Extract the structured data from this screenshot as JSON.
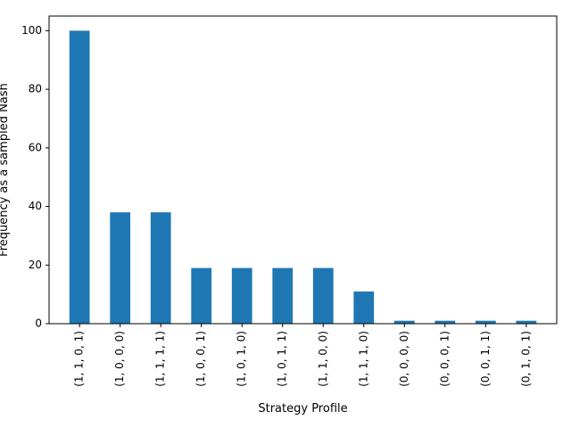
{
  "chart_data": {
    "type": "bar",
    "title": "",
    "xlabel": "Strategy Profile",
    "ylabel": "Frequency as a sampled Nash",
    "categories": [
      "(1, 1, 0, 1)",
      "(1, 0, 0, 0)",
      "(1, 1, 1, 1)",
      "(1, 0, 0, 1)",
      "(1, 0, 1, 0)",
      "(1, 0, 1, 1)",
      "(1, 1, 0, 0)",
      "(1, 1, 1, 0)",
      "(0, 0, 0, 0)",
      "(0, 0, 0, 1)",
      "(0, 0, 1, 1)",
      "(0, 1, 0, 1)"
    ],
    "values": [
      100,
      38,
      38,
      19,
      19,
      19,
      19,
      11,
      1,
      1,
      1,
      1
    ],
    "ylim": [
      0,
      105
    ],
    "yticks": [
      0,
      20,
      40,
      60,
      80,
      100
    ],
    "grid": false,
    "bar_color": "#1f77b4"
  }
}
